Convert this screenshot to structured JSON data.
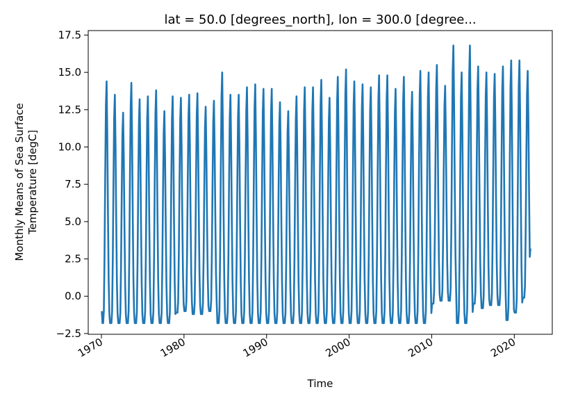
{
  "chart_data": {
    "type": "line",
    "title": "lat = 50.0 [degrees_north], lon = 300.0 [degree...",
    "xlabel": "Time",
    "ylabel_lines": [
      "Monthly Means of Sea Surface",
      "Temperature [degC]"
    ],
    "xlim": [
      1968.4,
      2024.6
    ],
    "ylim": [
      -2.55,
      17.8
    ],
    "x_ticks": [
      1970,
      1980,
      1990,
      2000,
      2010,
      2020
    ],
    "x_tick_labels": [
      "1970",
      "1980",
      "1990",
      "2000",
      "2010",
      "2020"
    ],
    "y_ticks": [
      -2.5,
      0.0,
      2.5,
      5.0,
      7.5,
      10.0,
      12.5,
      15.0,
      17.5
    ],
    "y_tick_labels": [
      "−2.5",
      "0.0",
      "2.5",
      "5.0",
      "7.5",
      "10.0",
      "12.5",
      "15.0",
      "17.5"
    ],
    "grid": false,
    "line_color": "#1f77b4",
    "series": [
      {
        "sampling": "monthly",
        "start": "1970-01",
        "end": "2021-12",
        "annual_peaks": [
          14.4,
          13.5,
          12.3,
          14.3,
          13.2,
          13.4,
          13.8,
          12.4,
          13.4,
          13.3,
          13.5,
          13.6,
          12.7,
          13.1,
          15.0,
          13.5,
          13.5,
          14.0,
          14.2,
          13.9,
          13.9,
          13.0,
          12.4,
          13.4,
          14.0,
          14.0,
          14.5,
          13.3,
          14.7,
          15.2,
          14.4,
          14.2,
          14.0,
          14.8,
          14.8,
          13.9,
          14.7,
          13.7,
          15.1,
          15.0,
          15.5,
          14.1,
          16.8,
          15.0,
          16.8,
          15.4,
          15.0,
          14.9,
          15.4,
          15.8,
          15.8,
          15.1
        ],
        "annual_minima": [
          -1.8,
          -1.8,
          -1.8,
          -1.8,
          -1.8,
          -1.8,
          -1.8,
          -1.8,
          -1.8,
          -1.1,
          -1.0,
          -1.2,
          -1.2,
          -1.0,
          -1.8,
          -1.8,
          -1.8,
          -1.8,
          -1.8,
          -1.8,
          -1.8,
          -1.8,
          -1.8,
          -1.8,
          -1.8,
          -1.8,
          -1.8,
          -1.8,
          -1.8,
          -1.8,
          -1.8,
          -1.8,
          -1.8,
          -1.8,
          -1.8,
          -1.8,
          -1.8,
          -1.8,
          -1.8,
          -1.8,
          -0.5,
          -0.3,
          -0.3,
          -1.8,
          -1.8,
          -0.5,
          -0.8,
          -0.6,
          -0.6,
          -1.6,
          -1.1,
          -0.1
        ],
        "final_value": 3.2
      }
    ]
  }
}
